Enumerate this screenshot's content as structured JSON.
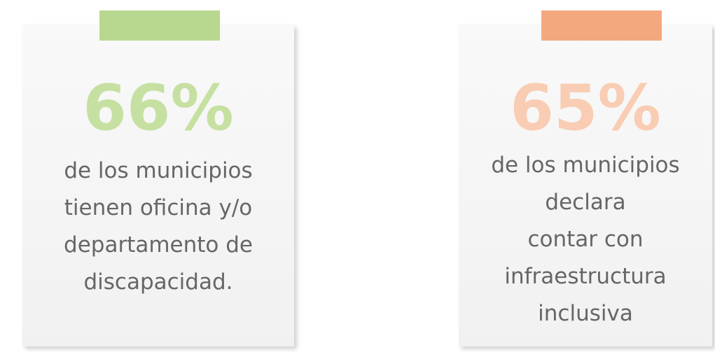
{
  "cards": [
    {
      "stat": "66%",
      "lines": [
        "de los municipios",
        "tienen oficina y/o",
        "departamento de",
        "discapacidad."
      ]
    },
    {
      "stat": "65%",
      "lines": [
        "de los municipios",
        "declara",
        "contar con",
        "infraestructura",
        "inclusiva"
      ]
    }
  ]
}
